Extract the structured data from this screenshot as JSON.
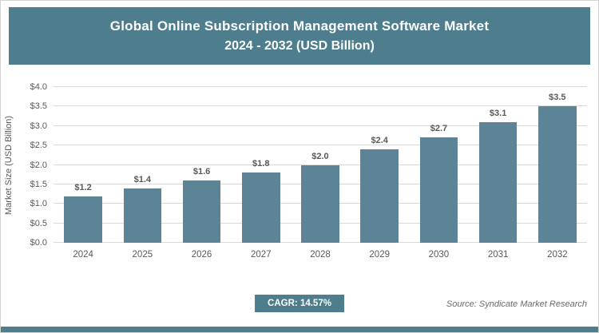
{
  "header": {
    "title_line1": "Global Online Subscription Management Software Market",
    "title_line2": "2024 - 2032 (USD Billion)"
  },
  "chart_data": {
    "type": "bar",
    "title": "Global Online Subscription Management Software Market 2024 - 2032 (USD Billion)",
    "categories": [
      "2024",
      "2025",
      "2026",
      "2027",
      "2028",
      "2029",
      "2030",
      "2031",
      "2032"
    ],
    "values": [
      1.2,
      1.4,
      1.6,
      1.8,
      2.0,
      2.4,
      2.7,
      3.1,
      3.5
    ],
    "value_labels": [
      "$1.2",
      "$1.4",
      "$1.6",
      "$1.8",
      "$2.0",
      "$2.4",
      "$2.7",
      "$3.1",
      "$3.5"
    ],
    "xlabel": "",
    "ylabel": "Market Size (USD Billion)",
    "ylim": [
      0,
      4.0
    ],
    "ytick_step": 0.5,
    "ytick_labels": [
      "$0.0",
      "$0.5",
      "$1.0",
      "$1.5",
      "$2.0",
      "$2.5",
      "$3.0",
      "$3.5",
      "$4.0"
    ],
    "grid": true,
    "legend": false
  },
  "footer": {
    "cagr_label": "CAGR: 14.57%",
    "source": "Source: Syndicate Market Research"
  },
  "colors": {
    "accent": "#4e7d8d",
    "bar": "#5d8496",
    "gridline": "#d9d9d9",
    "label_text": "#595959"
  }
}
